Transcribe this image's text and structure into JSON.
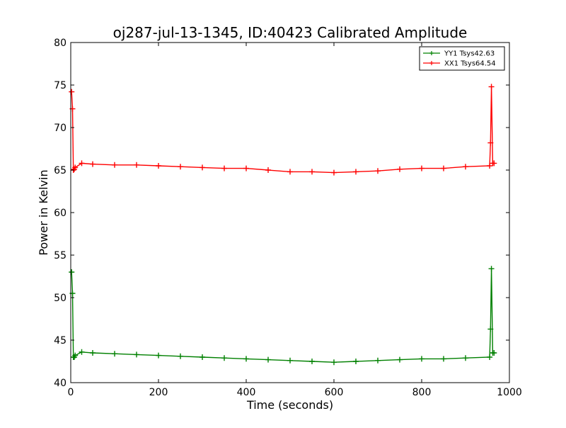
{
  "chart_data": {
    "type": "line",
    "title": "oj287-jul-13-1345, ID:40423 Calibrated Amplitude",
    "xlabel": "Time (seconds)",
    "ylabel": "Power in Kelvin",
    "xlim": [
      0,
      1000
    ],
    "ylim": [
      40,
      80
    ],
    "xticks": [
      0,
      200,
      400,
      600,
      800,
      1000
    ],
    "yticks": [
      40,
      45,
      50,
      55,
      60,
      65,
      70,
      75,
      80
    ],
    "grid": false,
    "legend_position": "top-right",
    "marker": "+",
    "series": [
      {
        "name": "YY1 Tsys42.63",
        "color": "#008000",
        "x": [
          2,
          4,
          6,
          8,
          10,
          25,
          50,
          100,
          150,
          200,
          250,
          300,
          350,
          400,
          450,
          500,
          550,
          600,
          650,
          700,
          750,
          800,
          850,
          900,
          955,
          957,
          959,
          962,
          965
        ],
        "y": [
          53.0,
          50.5,
          43.0,
          43.0,
          43.2,
          43.6,
          43.5,
          43.4,
          43.3,
          43.2,
          43.1,
          43.0,
          42.9,
          42.8,
          42.7,
          42.6,
          42.5,
          42.4,
          42.5,
          42.6,
          42.7,
          42.8,
          42.8,
          42.9,
          43.0,
          46.3,
          53.4,
          43.5,
          43.5
        ]
      },
      {
        "name": "XX1 Tsys64.54",
        "color": "#ff0000",
        "x": [
          2,
          4,
          6,
          8,
          10,
          25,
          50,
          100,
          150,
          200,
          250,
          300,
          350,
          400,
          450,
          500,
          550,
          600,
          650,
          700,
          750,
          800,
          850,
          900,
          955,
          957,
          959,
          962,
          965
        ],
        "y": [
          74.2,
          72.2,
          65.0,
          65.1,
          65.3,
          65.8,
          65.7,
          65.6,
          65.6,
          65.5,
          65.4,
          65.3,
          65.2,
          65.2,
          65.0,
          64.8,
          64.8,
          64.7,
          64.8,
          64.9,
          65.1,
          65.2,
          65.2,
          65.4,
          65.5,
          68.2,
          74.8,
          65.8,
          65.8
        ]
      }
    ]
  }
}
